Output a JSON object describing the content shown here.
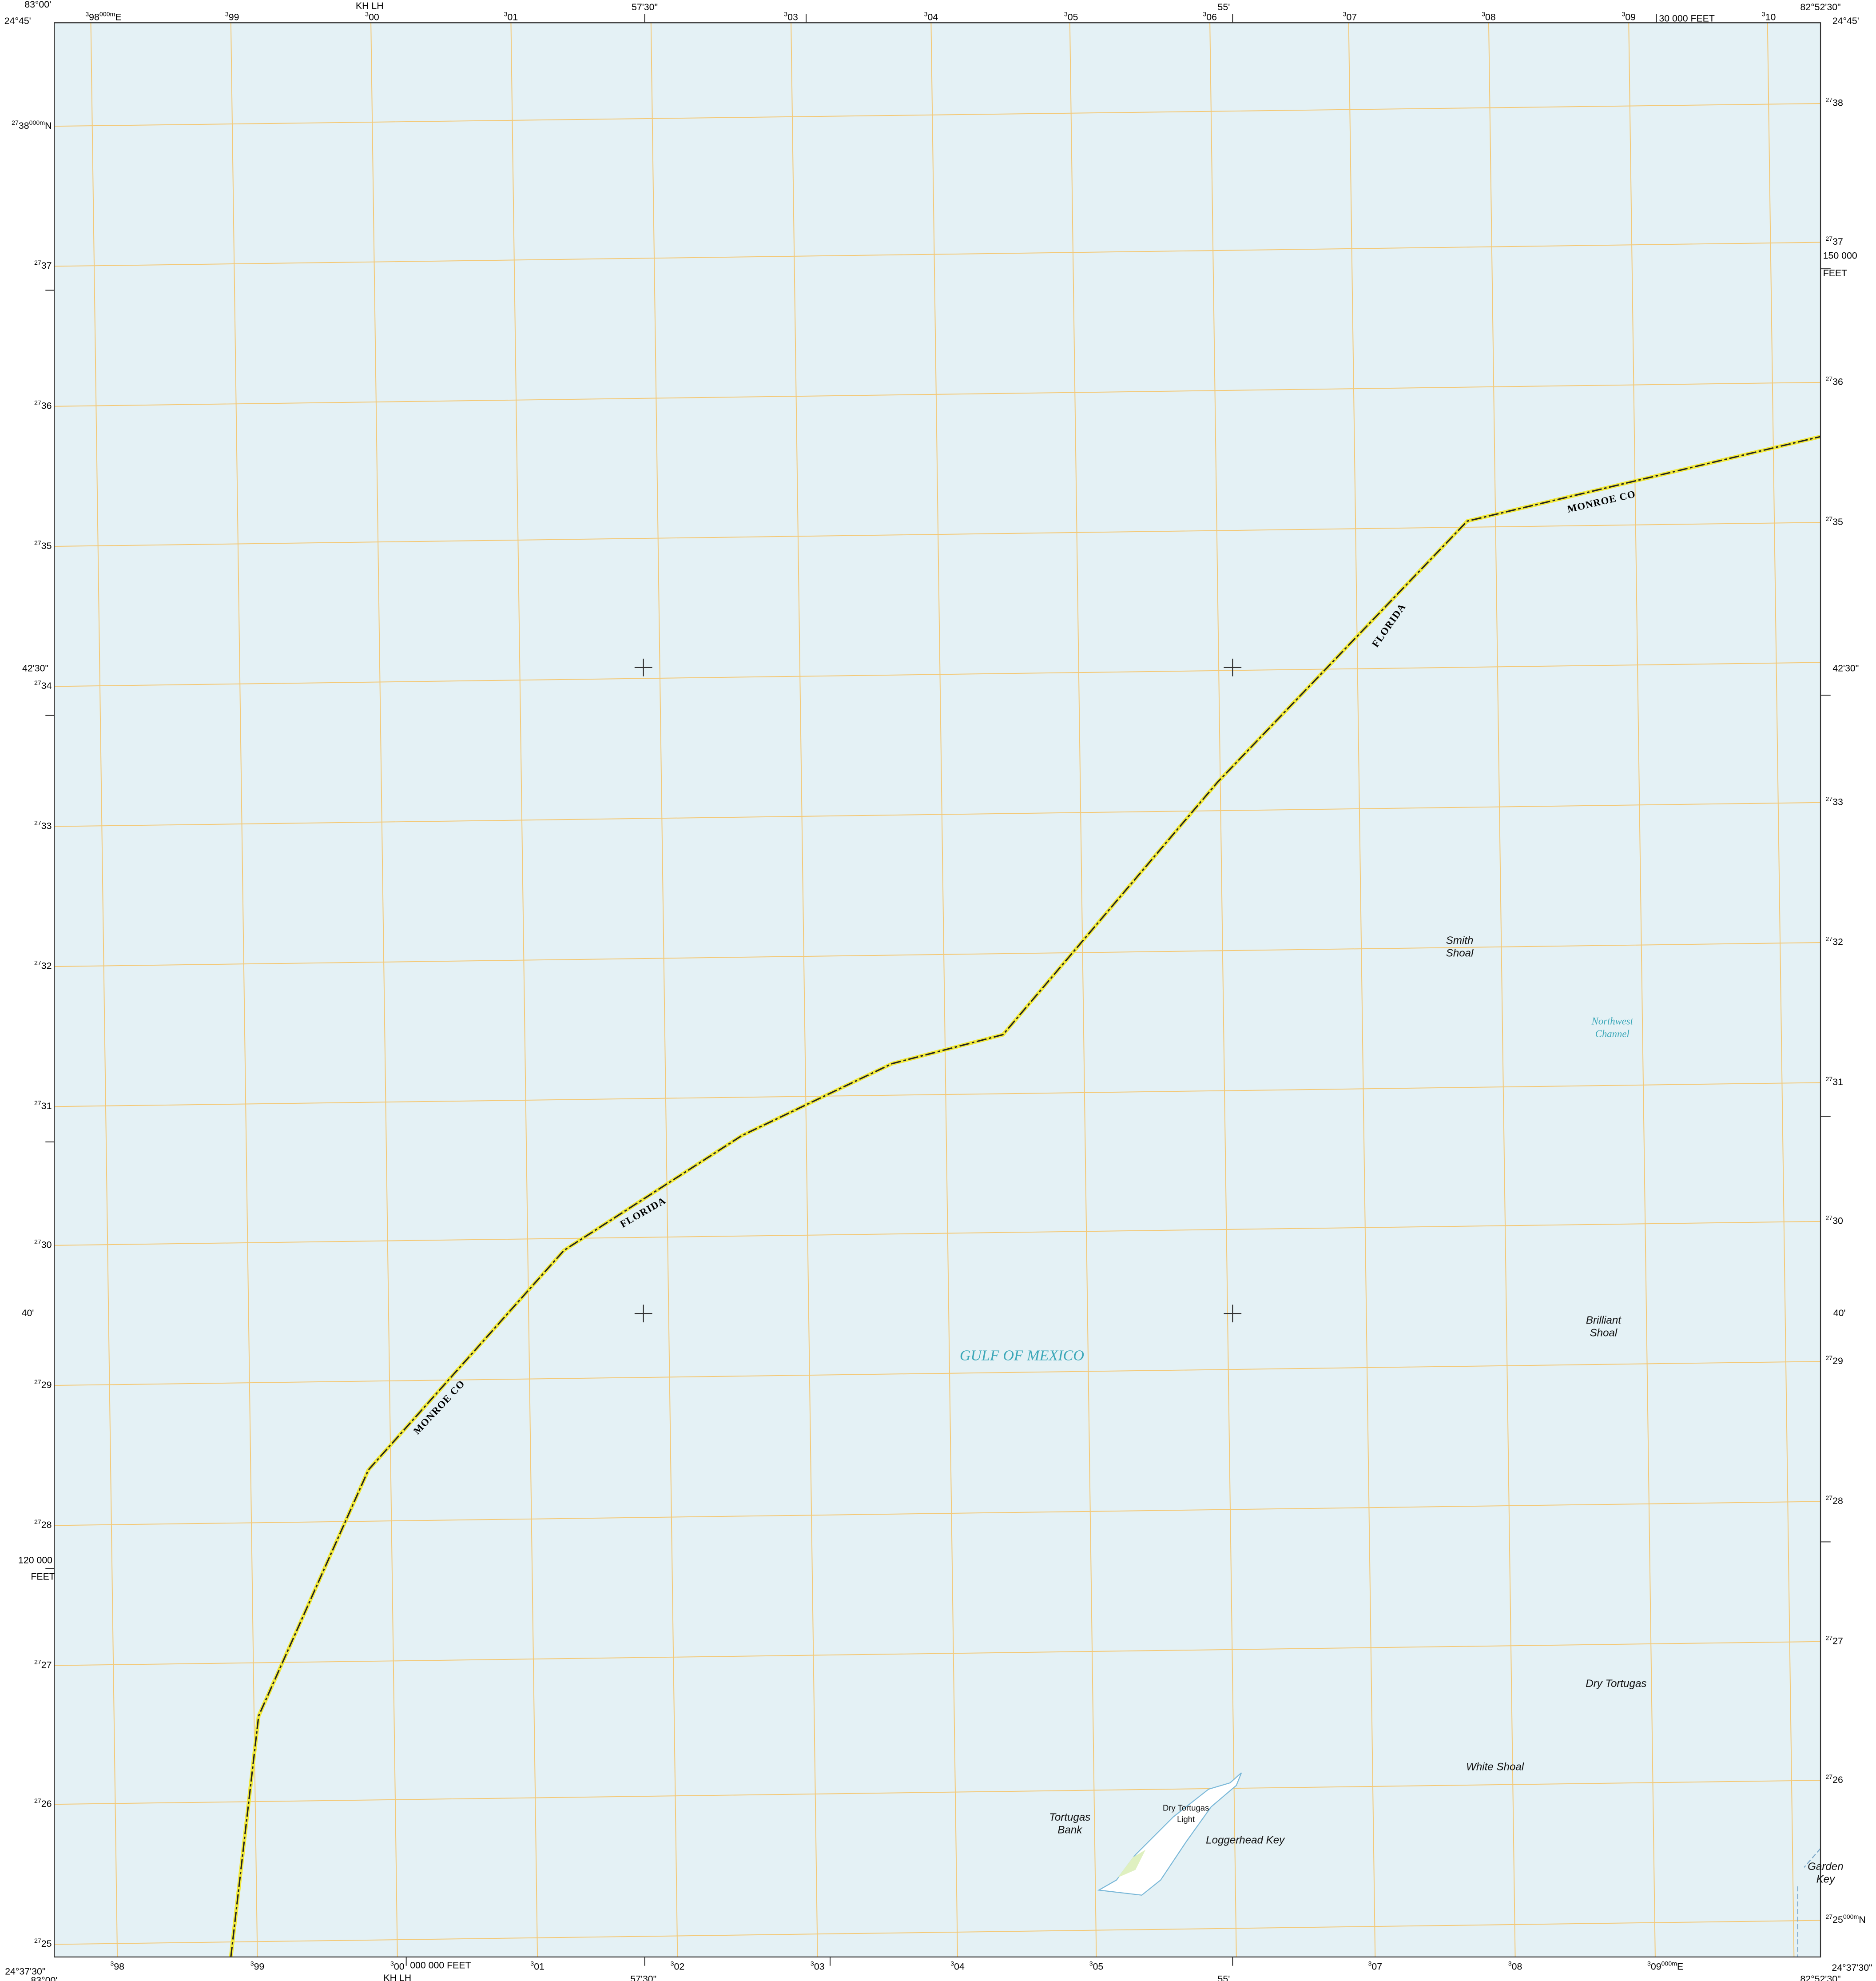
{
  "corners": [
    "83°00'",
    "24°45'",
    "KH LH",
    "57'30\"",
    "55'",
    "82°52'30\"",
    "24°45'",
    "30 000 FEET",
    "24°37'30\"",
    "83°00'",
    "KH LH",
    "57'30\"",
    "55'",
    "82°52'30\"",
    "24°37'30\"",
    "42'30\"",
    "42'30\"",
    "40'",
    "40'",
    "150 000",
    "FEET",
    "120 000",
    "FEET",
    "000 000 FEET"
  ],
  "top_labels": [
    {
      "sup": "3",
      "main": "98",
      "unit": "000m",
      "tail": "E"
    },
    {
      "sup": "3",
      "main": "99"
    },
    {
      "sup": "3",
      "main": "00"
    },
    {
      "sup": "3",
      "main": "01"
    },
    {
      "sup": "3",
      "main": "03"
    },
    {
      "sup": "3",
      "main": "04"
    },
    {
      "sup": "3",
      "main": "05"
    },
    {
      "sup": "3",
      "main": "06"
    },
    {
      "sup": "3",
      "main": "07"
    },
    {
      "sup": "3",
      "main": "08"
    },
    {
      "sup": "3",
      "main": "09"
    },
    {
      "sup": "3",
      "main": "10"
    }
  ],
  "bottom_labels": [
    {
      "sup": "3",
      "main": "98"
    },
    {
      "sup": "3",
      "main": "99"
    },
    {
      "sup": "3",
      "main": "00"
    },
    {
      "sup": "3",
      "main": "01"
    },
    {
      "sup": "3",
      "main": "02"
    },
    {
      "sup": "3",
      "main": "03"
    },
    {
      "sup": "3",
      "main": "04"
    },
    {
      "sup": "3",
      "main": "05"
    },
    {
      "sup": "3",
      "main": "07"
    },
    {
      "sup": "3",
      "main": "08"
    },
    {
      "sup": "3",
      "main": "09",
      "unit": "000m",
      "tail": "E"
    }
  ],
  "left_labels": [
    {
      "sup": "27",
      "main": "38",
      "unit": "000m",
      "tail": "N"
    },
    {
      "sup": "27",
      "main": "37"
    },
    {
      "sup": "27",
      "main": "36"
    },
    {
      "sup": "27",
      "main": "35"
    },
    {
      "sup": "27",
      "main": "34"
    },
    {
      "sup": "27",
      "main": "33"
    },
    {
      "sup": "27",
      "main": "32"
    },
    {
      "sup": "27",
      "main": "31"
    },
    {
      "sup": "27",
      "main": "30"
    },
    {
      "sup": "27",
      "main": "29"
    },
    {
      "sup": "27",
      "main": "28"
    },
    {
      "sup": "27",
      "main": "27"
    },
    {
      "sup": "27",
      "main": "26"
    },
    {
      "sup": "27",
      "main": "25"
    }
  ],
  "right_labels": [
    {
      "sup": "27",
      "main": "38"
    },
    {
      "sup": "27",
      "main": "37"
    },
    {
      "sup": "27",
      "main": "36"
    },
    {
      "sup": "27",
      "main": "35"
    },
    {
      "sup": "27",
      "main": "33"
    },
    {
      "sup": "27",
      "main": "32"
    },
    {
      "sup": "27",
      "main": "31"
    },
    {
      "sup": "27",
      "main": "30"
    },
    {
      "sup": "27",
      "main": "29"
    },
    {
      "sup": "27",
      "main": "28"
    },
    {
      "sup": "27",
      "main": "27"
    },
    {
      "sup": "27",
      "main": "26"
    },
    {
      "sup": "27",
      "main": "25",
      "unit": "000m",
      "tail": "N"
    }
  ],
  "boundary_labels": [
    "FLORIDA",
    "MONROE CO",
    "FLORIDA",
    "MONROE CO"
  ],
  "features": [
    {
      "lines": [
        "GULF OF MEXICO"
      ]
    },
    {
      "lines": [
        "Smith",
        "Shoal"
      ]
    },
    {
      "lines": [
        "Northwest",
        "Channel"
      ]
    },
    {
      "lines": [
        "Brilliant",
        "Shoal"
      ]
    },
    {
      "lines": [
        "Dry Tortugas"
      ]
    },
    {
      "lines": [
        "White Shoal"
      ]
    },
    {
      "lines": [
        "Tortugas",
        "Bank"
      ]
    },
    {
      "lines": [
        "Dry Tortugas",
        "Light"
      ]
    },
    {
      "lines": [
        "Loggerhead Key"
      ]
    },
    {
      "lines": [
        "Garden",
        "Key"
      ]
    }
  ]
}
